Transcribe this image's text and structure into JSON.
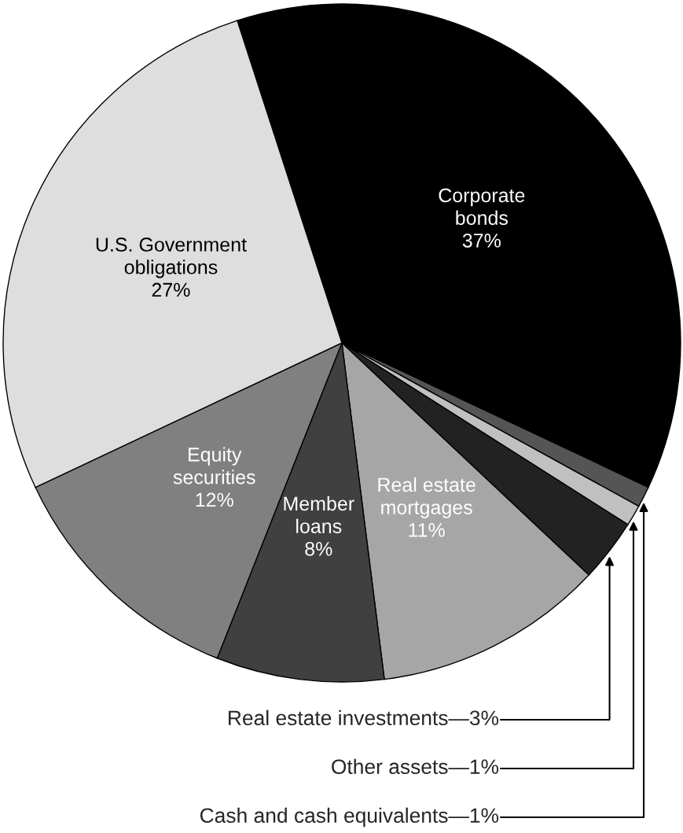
{
  "chart_data": {
    "type": "pie",
    "categories": [
      "Corporate\nbonds",
      "Cash and cash equivalents",
      "Other assets",
      "Real estate investments",
      "Real estate\nmortgages",
      "Member\nloans",
      "Equity\nsecurities",
      "U.S. Government\nobligations"
    ],
    "values": [
      37,
      1,
      1,
      3,
      11,
      8,
      12,
      27
    ],
    "value_labels": [
      "37%",
      "—1%",
      "—1%",
      "—3%",
      "11%",
      "8%",
      "12%",
      "27%"
    ],
    "colors": [
      "#000000",
      "#555555",
      "#c0c0c0",
      "#222222",
      "#a6a6a6",
      "#404040",
      "#808080",
      "#dedede"
    ]
  }
}
